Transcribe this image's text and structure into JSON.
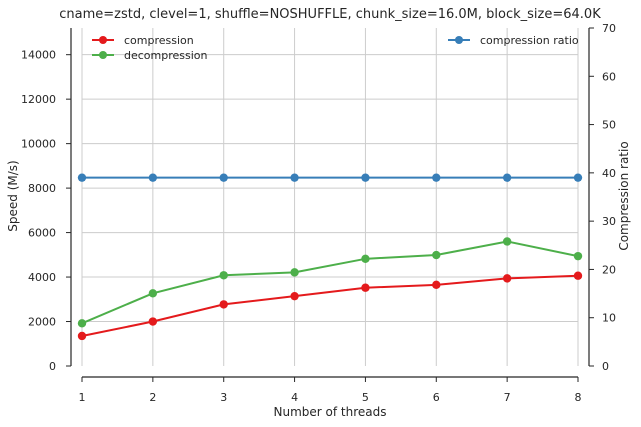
{
  "chart_data": {
    "type": "line",
    "title": "cname=zstd, clevel=1, shuffle=NOSHUFFLE, chunk_size=16.0M, block_size=64.0K",
    "xlabel": "Number of threads",
    "ylabel": "Speed (M/s)",
    "y2label": "Compression ratio",
    "x": [
      1,
      2,
      3,
      4,
      5,
      6,
      7,
      8
    ],
    "xlim": [
      1,
      8
    ],
    "ylim": [
      0,
      15200
    ],
    "y2lim": [
      0,
      70
    ],
    "xticks": [
      "1",
      "2",
      "3",
      "4",
      "5",
      "6",
      "7",
      "8"
    ],
    "yticks": [
      0,
      2000,
      4000,
      6000,
      8000,
      10000,
      12000,
      14000
    ],
    "y2ticks": [
      0,
      10,
      20,
      30,
      40,
      50,
      60,
      70
    ],
    "grid": true,
    "series": [
      {
        "name": "compression",
        "axis": "left",
        "color": "#e41a1c",
        "values": [
          1350,
          2000,
          2770,
          3140,
          3520,
          3650,
          3940,
          4060
        ]
      },
      {
        "name": "decompression",
        "axis": "left",
        "color": "#4daf4a",
        "values": [
          1920,
          3270,
          4080,
          4210,
          4820,
          4990,
          5600,
          4940
        ]
      },
      {
        "name": "compression ratio",
        "axis": "right",
        "color": "#377eb8",
        "values": [
          39,
          39,
          39,
          39,
          39,
          39,
          39,
          39
        ]
      }
    ],
    "legend_left_placement": "top-left",
    "legend_right_placement": "top-right"
  }
}
